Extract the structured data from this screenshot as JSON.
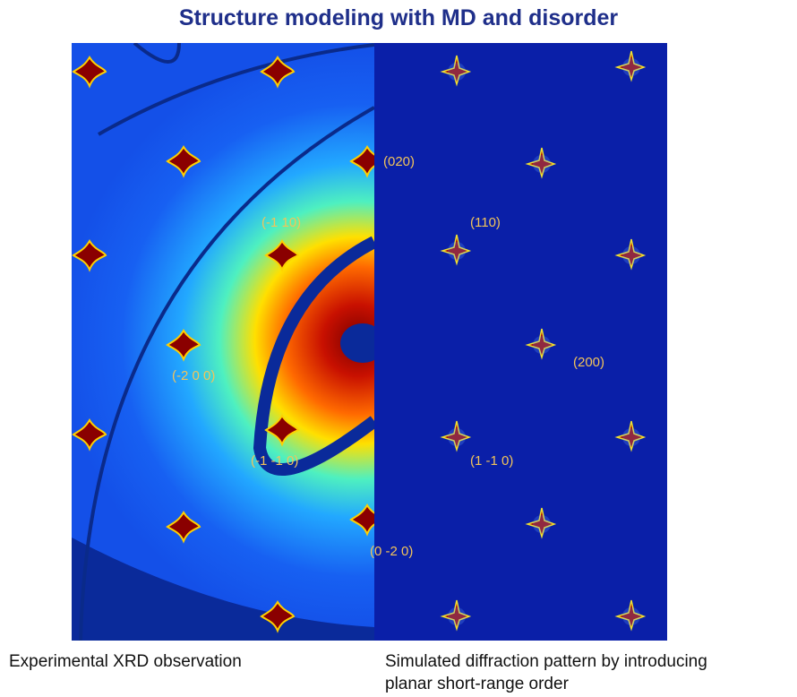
{
  "header": {
    "title": "Structure modeling with MD and disorder"
  },
  "figure": {
    "labels": [
      "(020)",
      "(-1 10)",
      "(110)",
      "(200)",
      "(-2 0 0)",
      "(-1 -1 0)",
      "(1 -1 0)",
      "(0 -2 0)"
    ]
  },
  "captions": {
    "left": "Experimental XRD observation",
    "right": [
      "Simulated diffraction pattern by introducing",
      "planar short-range order"
    ]
  }
}
